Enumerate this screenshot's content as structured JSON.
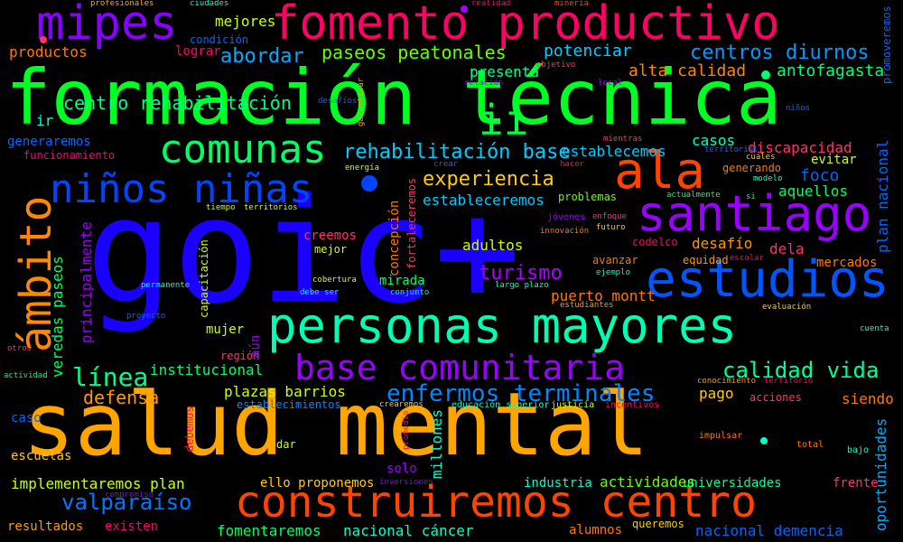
{
  "words": [
    {
      "text": "goic+",
      "color": "#1a00ff"
    },
    {
      "text": "salud mental",
      "color": "#ffa500"
    },
    {
      "text": "formación técnica",
      "color": "#00ff22"
    },
    {
      "text": "personas mayores",
      "color": "#00ffb3"
    },
    {
      "text": "fomento productivo",
      "color": "#ff0066"
    },
    {
      "text": "construiremos centro",
      "color": "#ff4400"
    },
    {
      "text": "estudios",
      "color": "#0055ff"
    },
    {
      "text": "santiago",
      "color": "#9900ff"
    },
    {
      "text": "ala",
      "color": "#ff4400"
    },
    {
      "text": "mipes",
      "color": "#8800ff"
    },
    {
      "text": "ámbito",
      "color": "#ff8800"
    },
    {
      "text": "comunas",
      "color": "#00ff66"
    },
    {
      "text": "niños niñas",
      "color": "#0044ff"
    },
    {
      "text": "base comunitaria",
      "color": "#9900ff"
    },
    {
      "text": "enfermos terminales",
      "color": "#0088ff"
    },
    {
      "text": "rehabilitación base",
      "color": "#00ccff"
    },
    {
      "text": "valparaíso",
      "color": "#0077ff"
    },
    {
      "text": "experiencia",
      "color": "#ffcc00"
    },
    {
      "text": "turismo",
      "color": "#aa00ff"
    },
    {
      "text": "línea",
      "color": "#00ff88"
    },
    {
      "text": "calidad vida",
      "color": "#00ff99"
    },
    {
      "text": "defensa",
      "color": "#ff9900"
    },
    {
      "text": "centros diurnos",
      "color": "#0099ff"
    },
    {
      "text": "centro rehabilitación",
      "color": "#00ff88"
    },
    {
      "text": "paseos peatonales",
      "color": "#66ff00"
    },
    {
      "text": "abordar",
      "color": "#00aaff"
    },
    {
      "text": "ii",
      "color": "#00ff44"
    },
    {
      "text": "alta calidad",
      "color": "#ff8800"
    },
    {
      "text": "antofagasta",
      "color": "#00ff77"
    },
    {
      "text": "potenciar",
      "color": "#00ccff"
    },
    {
      "text": "presenta",
      "color": "#00ff99"
    },
    {
      "text": "mejores",
      "color": "#ccff00"
    },
    {
      "text": "productos",
      "color": "#ff7700"
    },
    {
      "text": "lograr",
      "color": "#ff0066"
    },
    {
      "text": "condición",
      "color": "#0066ff"
    },
    {
      "text": "profesionales",
      "color": "#ffaa00"
    },
    {
      "text": "ciudades",
      "color": "#00ffcc"
    },
    {
      "text": "realidad",
      "color": "#ff0066"
    },
    {
      "text": "minería",
      "color": "#ff4400"
    },
    {
      "text": "casos",
      "color": "#00ffcc"
    },
    {
      "text": "discapacidad",
      "color": "#ff3366"
    },
    {
      "text": "evitar",
      "color": "#ccff00"
    },
    {
      "text": "generando",
      "color": "#ff7700"
    },
    {
      "text": "foco",
      "color": "#0066ff"
    },
    {
      "text": "aquellos",
      "color": "#00ff66"
    },
    {
      "text": "establecemos",
      "color": "#00ccff"
    },
    {
      "text": "estableceremos",
      "color": "#00ccff"
    },
    {
      "text": "problemas",
      "color": "#66ff00"
    },
    {
      "text": "adultos",
      "color": "#ccff00"
    },
    {
      "text": "desafío",
      "color": "#ff9900"
    },
    {
      "text": "dela",
      "color": "#ff3366"
    },
    {
      "text": "mercados",
      "color": "#ff7700"
    },
    {
      "text": "codelco",
      "color": "#ff0066"
    },
    {
      "text": "equidad",
      "color": "#ff9900"
    },
    {
      "text": "avanzar",
      "color": "#ff7700"
    },
    {
      "text": "mirada",
      "color": "#00ff66"
    },
    {
      "text": "puerto montt",
      "color": "#ff7700"
    },
    {
      "text": "creemos",
      "color": "#ff3366"
    },
    {
      "text": "mejor",
      "color": "#ccff00"
    },
    {
      "text": "institucional",
      "color": "#00ff66"
    },
    {
      "text": "plazas barrios",
      "color": "#ccff00"
    },
    {
      "text": "establecimientos",
      "color": "#0088ff"
    },
    {
      "text": "pago",
      "color": "#ffcc00"
    },
    {
      "text": "siendo",
      "color": "#ff7700"
    },
    {
      "text": "acciones",
      "color": "#ff3366"
    },
    {
      "text": "generaremos",
      "color": "#0066ff"
    },
    {
      "text": "funcionamiento",
      "color": "#ff0066"
    },
    {
      "text": "ir",
      "color": "#00ffcc"
    },
    {
      "text": "mujer",
      "color": "#ccff00"
    },
    {
      "text": "región",
      "color": "#ff3366"
    },
    {
      "text": "caso",
      "color": "#0066ff"
    },
    {
      "text": "escuelas",
      "color": "#ffcc00"
    },
    {
      "text": "implementaremos plan",
      "color": "#ccff00"
    },
    {
      "text": "resultados",
      "color": "#ff9900"
    },
    {
      "text": "existen",
      "color": "#ff0066"
    },
    {
      "text": "fomentaremos",
      "color": "#00ff66"
    },
    {
      "text": "nacional cáncer",
      "color": "#00ffcc"
    },
    {
      "text": "alumnos",
      "color": "#ff7700"
    },
    {
      "text": "queremos",
      "color": "#ffcc00"
    },
    {
      "text": "nacional demencia",
      "color": "#0066ff"
    },
    {
      "text": "frente",
      "color": "#ff3366"
    },
    {
      "text": "industria",
      "color": "#00ffcc"
    },
    {
      "text": "universidades",
      "color": "#00ff99"
    },
    {
      "text": "actividades",
      "color": "#66ff00"
    },
    {
      "text": "solo",
      "color": "#9900ff"
    },
    {
      "text": "ello proponemos",
      "color": "#ffcc00"
    },
    {
      "text": "dar",
      "color": "#ccff00"
    },
    {
      "text": "total",
      "color": "#ff7700"
    },
    {
      "text": "bajo",
      "color": "#00ffcc"
    },
    {
      "text": "impulsar",
      "color": "#ff7700"
    },
    {
      "text": "justicia",
      "color": "#ccff00"
    },
    {
      "text": "educación superior",
      "color": "#00ffcc"
    },
    {
      "text": "incentivos",
      "color": "#ff0066"
    },
    {
      "text": "conocimiento",
      "color": "#ff9900"
    },
    {
      "text": "territorio",
      "color": "#ff0066"
    },
    {
      "text": "crearemos",
      "color": "#ffcc00"
    },
    {
      "text": "inversiones",
      "color": "#8800ff"
    },
    {
      "text": "compromiso",
      "color": "#8800ff"
    },
    {
      "text": "actividad",
      "color": "#00ff66"
    },
    {
      "text": "otros",
      "color": "#ff3366"
    },
    {
      "text": "cuenta",
      "color": "#00ffcc"
    },
    {
      "text": "evaluación",
      "color": "#ffcc00"
    },
    {
      "text": "estudiantes",
      "color": "#ff9900"
    },
    {
      "text": "proyecto",
      "color": "#0066ff"
    },
    {
      "text": "permanente",
      "color": "#00ffcc"
    },
    {
      "text": "debe ser",
      "color": "#00ffcc"
    },
    {
      "text": "conjunto",
      "color": "#00ffcc"
    },
    {
      "text": "largo plazo",
      "color": "#00ffcc"
    },
    {
      "text": "cobertura",
      "color": "#ccff00"
    },
    {
      "text": "ejemplo",
      "color": "#00ffcc"
    },
    {
      "text": "escolar",
      "color": "#ff0066"
    },
    {
      "text": "futuro",
      "color": "#ffcc00"
    },
    {
      "text": "enfoque",
      "color": "#ff3366"
    },
    {
      "text": "jóvenes",
      "color": "#9900ff"
    },
    {
      "text": "innovación",
      "color": "#ff7700"
    },
    {
      "text": "tiempo",
      "color": "#ccff00"
    },
    {
      "text": "territorios",
      "color": "#ccff00"
    },
    {
      "text": "actualmente",
      "color": "#00ff66"
    },
    {
      "text": "si",
      "color": "#00ff66"
    },
    {
      "text": "modelo",
      "color": "#00ffcc"
    },
    {
      "text": "cuales",
      "color": "#ffcc00"
    },
    {
      "text": "territorial",
      "color": "#0066ff"
    },
    {
      "text": "mientras",
      "color": "#ff3366"
    },
    {
      "text": "hacer",
      "color": "#ff0066"
    },
    {
      "text": "crear",
      "color": "#0066ff"
    },
    {
      "text": "energía",
      "color": "#ccff00"
    },
    {
      "text": "relación",
      "color": "#8800ff"
    },
    {
      "text": "objetivo",
      "color": "#ff3366"
    },
    {
      "text": "desafíos",
      "color": "#0066ff"
    },
    {
      "text": "local",
      "color": "#9900ff"
    },
    {
      "text": "niños",
      "color": "#0066ff"
    },
    {
      "text": "garantizar",
      "color": "#ff9900"
    },
    {
      "text": "promoveremos",
      "color": "#0066ff"
    },
    {
      "text": "plan nacional",
      "color": "#0066ff"
    },
    {
      "text": "oportunidades",
      "color": "#00aaff"
    },
    {
      "text": "veredas paseos",
      "color": "#00ff66"
    },
    {
      "text": "principalmente",
      "color": "#9900ff"
    },
    {
      "text": "capacitación",
      "color": "#ccff00"
    },
    {
      "text": "aún",
      "color": "#9900ff"
    },
    {
      "text": "concepción",
      "color": "#ff7700"
    },
    {
      "text": "fortaleceremos",
      "color": "#ff3366"
    },
    {
      "text": "millones",
      "color": "#00ffcc"
    },
    {
      "text": "debemos",
      "color": "#ff0066"
    },
    {
      "text": "promedio",
      "color": "#ff0066"
    }
  ]
}
